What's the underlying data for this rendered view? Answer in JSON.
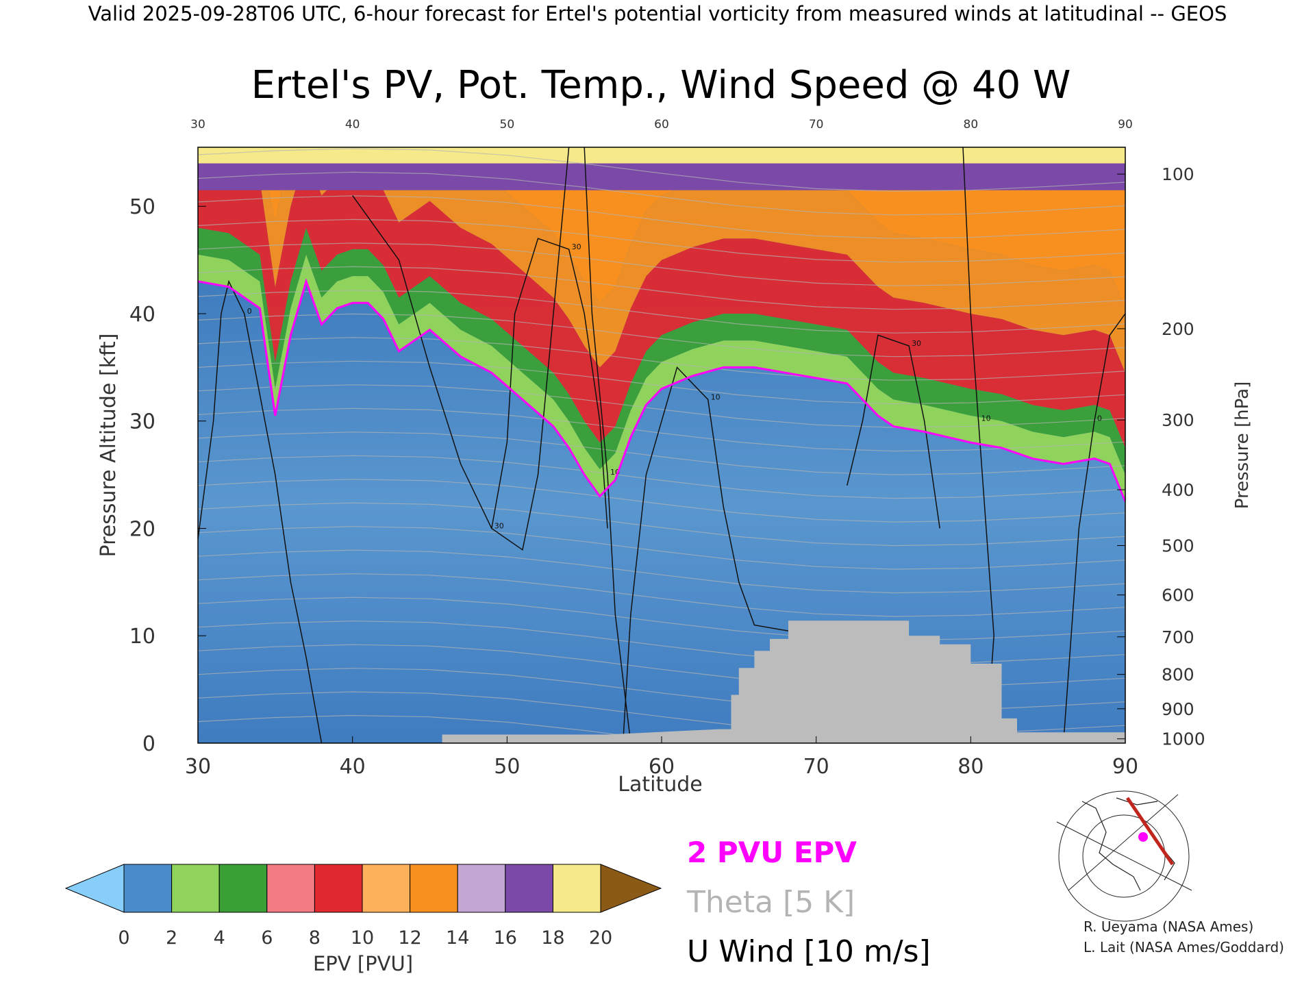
{
  "header": {
    "top_line": "Valid 2025-09-28T06 UTC, 6-hour forecast for Ertel's potential vorticity from measured winds at latitudinal -- GEOS",
    "title": "Ertel's PV, Pot. Temp., Wind Speed @ 40 W"
  },
  "chart_data": {
    "type": "heatmap",
    "xlabel": "Latitude",
    "ylabel_left": "Pressure Altitude [kft]",
    "ylabel_right": "Pressure [hPa]",
    "xlim": [
      30,
      90
    ],
    "ylim_kft": [
      0,
      55.5
    ],
    "x_ticks": [
      "30",
      "40",
      "50",
      "60",
      "70",
      "80",
      "90"
    ],
    "y_ticks_left": [
      {
        "label": "0",
        "kft": 0
      },
      {
        "label": "10",
        "kft": 10
      },
      {
        "label": "20",
        "kft": 20
      },
      {
        "label": "30",
        "kft": 30
      },
      {
        "label": "40",
        "kft": 40
      },
      {
        "label": "50",
        "kft": 50
      }
    ],
    "y_ticks_right": [
      {
        "label": "100",
        "kft": 53.0
      },
      {
        "label": "200",
        "kft": 38.6
      },
      {
        "label": "300",
        "kft": 30.1
      },
      {
        "label": "400",
        "kft": 23.6
      },
      {
        "label": "500",
        "kft": 18.4
      },
      {
        "label": "600",
        "kft": 13.8
      },
      {
        "label": "700",
        "kft": 9.9
      },
      {
        "label": "800",
        "kft": 6.4
      },
      {
        "label": "900",
        "kft": 3.2
      },
      {
        "label": "1000",
        "kft": 0.4
      }
    ],
    "pv2_tropopause_kft": [
      [
        30,
        43.0
      ],
      [
        32,
        42.5
      ],
      [
        34,
        40.5
      ],
      [
        35,
        30.5
      ],
      [
        36,
        38.0
      ],
      [
        37,
        43.0
      ],
      [
        38,
        39.0
      ],
      [
        39,
        40.5
      ],
      [
        40,
        41.0
      ],
      [
        41,
        41.0
      ],
      [
        42,
        39.5
      ],
      [
        43,
        36.5
      ],
      [
        44,
        37.5
      ],
      [
        45,
        38.5
      ],
      [
        47,
        36.0
      ],
      [
        49,
        34.5
      ],
      [
        51,
        32.0
      ],
      [
        53,
        29.5
      ],
      [
        54,
        27.5
      ],
      [
        55,
        25.0
      ],
      [
        56,
        23.0
      ],
      [
        57,
        24.5
      ],
      [
        58,
        28.5
      ],
      [
        59,
        31.5
      ],
      [
        60,
        33.0
      ],
      [
        62,
        34.2
      ],
      [
        64,
        35.0
      ],
      [
        66,
        35.0
      ],
      [
        68,
        34.5
      ],
      [
        70,
        34.0
      ],
      [
        72,
        33.5
      ],
      [
        74,
        30.5
      ],
      [
        75,
        29.5
      ],
      [
        77,
        29.0
      ],
      [
        80,
        28.0
      ],
      [
        82,
        27.5
      ],
      [
        84,
        26.5
      ],
      [
        86,
        26.0
      ],
      [
        88,
        26.5
      ],
      [
        89,
        26.0
      ],
      [
        90,
        22.5
      ]
    ],
    "pv_layers": [
      {
        "name": "green",
        "color": "#3aa035",
        "offset_kft": [
          2.5,
          5.0
        ]
      },
      {
        "name": "red",
        "color": "#e0292e",
        "offset_kft": [
          5.0,
          12.0
        ]
      },
      {
        "name": "orange",
        "color": "#f7901e",
        "offset_kft": [
          12.0,
          18.0
        ]
      },
      {
        "name": "purple",
        "color": "#7b4aa8",
        "top_kft": [
          51.5,
          54.0
        ]
      }
    ],
    "terrain_kft": [
      [
        45.8,
        0.8
      ],
      [
        56.5,
        0.8
      ],
      [
        63.7,
        1.3
      ],
      [
        64.5,
        1.3
      ],
      [
        64.5,
        4.5
      ],
      [
        65.0,
        4.5
      ],
      [
        65.0,
        7.0
      ],
      [
        66.0,
        7.0
      ],
      [
        66.0,
        8.6
      ],
      [
        67.0,
        8.6
      ],
      [
        67.0,
        9.7
      ],
      [
        68.2,
        9.7
      ],
      [
        68.2,
        11.4
      ],
      [
        76.0,
        11.4
      ],
      [
        76.0,
        10.0
      ],
      [
        78.0,
        10.0
      ],
      [
        78.0,
        9.2
      ],
      [
        80.0,
        9.2
      ],
      [
        80.0,
        7.4
      ],
      [
        82.0,
        7.4
      ],
      [
        82.0,
        2.3
      ],
      [
        83.0,
        2.3
      ],
      [
        83.0,
        1.0
      ],
      [
        90.0,
        1.0
      ]
    ],
    "wind_contours": [
      {
        "label": "30",
        "points": [
          [
            40,
            51
          ],
          [
            43,
            45
          ],
          [
            45,
            35
          ],
          [
            47,
            26
          ],
          [
            49,
            20
          ],
          [
            51,
            18
          ],
          [
            52,
            25
          ],
          [
            53,
            40
          ],
          [
            54,
            55.5
          ]
        ]
      },
      {
        "label": "30",
        "points": [
          [
            49,
            20
          ],
          [
            50,
            28
          ],
          [
            50.5,
            40
          ],
          [
            52,
            47
          ],
          [
            54,
            46
          ],
          [
            55,
            40
          ],
          [
            56,
            30
          ],
          [
            56.5,
            20
          ]
        ]
      },
      {
        "label": "10",
        "points": [
          [
            55,
            55.5
          ],
          [
            55.5,
            40
          ],
          [
            56.5,
            25
          ],
          [
            57,
            12
          ],
          [
            58,
            0
          ]
        ]
      },
      {
        "label": "10",
        "points": [
          [
            57.5,
            0
          ],
          [
            58,
            12
          ],
          [
            59,
            25
          ],
          [
            61,
            35
          ],
          [
            63,
            32
          ],
          [
            64,
            22
          ],
          [
            65,
            15
          ],
          [
            66,
            11
          ],
          [
            70,
            10
          ]
        ]
      },
      {
        "label": "30",
        "points": [
          [
            72,
            24
          ],
          [
            73,
            30
          ],
          [
            74,
            38
          ],
          [
            76,
            37
          ],
          [
            77,
            30
          ],
          [
            78,
            20
          ]
        ]
      },
      {
        "label": "0",
        "points": [
          [
            30,
            19
          ],
          [
            31,
            30
          ],
          [
            31.5,
            40
          ],
          [
            32,
            43
          ],
          [
            33,
            40
          ],
          [
            35,
            25
          ],
          [
            36,
            15
          ],
          [
            37,
            8
          ],
          [
            38,
            0
          ]
        ]
      },
      {
        "label": "10",
        "points": [
          [
            81,
            0
          ],
          [
            81.5,
            10
          ],
          [
            81,
            20
          ],
          [
            80.5,
            30
          ],
          [
            80,
            40
          ],
          [
            79.5,
            55.5
          ]
        ]
      },
      {
        "label": "0",
        "points": [
          [
            86,
            0
          ],
          [
            86.5,
            10
          ],
          [
            87,
            20
          ],
          [
            88,
            30
          ],
          [
            89,
            38
          ],
          [
            90,
            40
          ]
        ]
      }
    ],
    "legend_labels": [
      "2 PVU EPV",
      "Theta [5 K]",
      "U Wind [10 m/s]"
    ],
    "legend_colors": [
      "#ff00ff",
      "#b4b4b4",
      "#000000"
    ],
    "colorbar": {
      "label": "EPV [PVU]",
      "tick_labels": [
        "0",
        "2",
        "4",
        "6",
        "8",
        "10",
        "12",
        "14",
        "16",
        "18",
        "20"
      ],
      "colors": [
        "#4a8bc9",
        "#8fd25c",
        "#3aa035",
        "#f27b84",
        "#e0292e",
        "#ffb05a",
        "#f7901e",
        "#c3a6d4",
        "#7b4aa8",
        "#f6e98a"
      ],
      "under_color": "#87cefa",
      "over_color": "#8b5a16"
    },
    "gray_color": "#bcbcbc",
    "credits": [
      "R. Ueyama (NASA Ames)",
      "L. Lait (NASA Ames/Goddard)"
    ]
  }
}
